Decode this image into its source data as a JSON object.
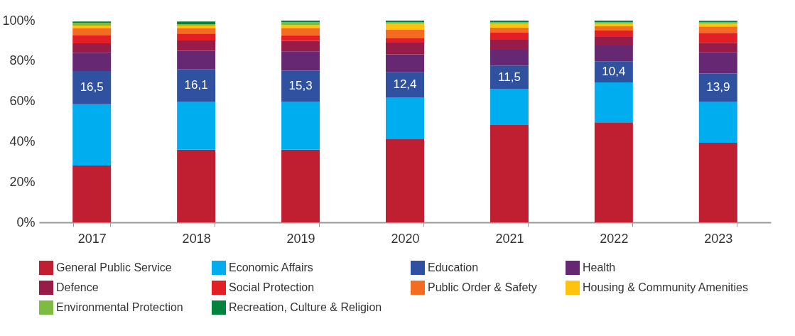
{
  "chart_data": {
    "type": "bar",
    "stacked": true,
    "categories": [
      "2017",
      "2018",
      "2019",
      "2020",
      "2021",
      "2022",
      "2023"
    ],
    "ylim": [
      0,
      100
    ],
    "yticks": [
      {
        "value": 0,
        "label": "0%"
      },
      {
        "value": 20,
        "label": "20%"
      },
      {
        "value": 40,
        "label": "40%"
      },
      {
        "value": 60,
        "label": "60%"
      },
      {
        "value": 80,
        "label": "80%"
      },
      {
        "value": 100,
        "label": "100%"
      }
    ],
    "grid": false,
    "legend": "bottom",
    "series": [
      {
        "name": "General Public Service",
        "color": "#c01f32",
        "values": [
          28.2,
          36.0,
          36.0,
          41.5,
          48.2,
          49.6,
          39.4
        ]
      },
      {
        "name": "Economic Affairs",
        "color": "#00aeef",
        "values": [
          30.3,
          23.9,
          23.9,
          20.5,
          18.0,
          19.8,
          20.5
        ]
      },
      {
        "name": "Education",
        "color": "#3050a0",
        "values": [
          16.5,
          16.1,
          15.3,
          12.4,
          11.5,
          10.4,
          13.9
        ],
        "value_labels": [
          "16,5",
          "16,1",
          "15,3",
          "12,4",
          "11,5",
          "10,4",
          "13,9"
        ]
      },
      {
        "name": "Health",
        "color": "#662873",
        "values": [
          9.1,
          9.0,
          9.6,
          8.9,
          7.9,
          7.9,
          10.6
        ]
      },
      {
        "name": "Defence",
        "color": "#981b48",
        "values": [
          4.6,
          5.1,
          5.2,
          5.8,
          4.9,
          4.2,
          4.6
        ]
      },
      {
        "name": "Social Protection",
        "color": "#e31f26",
        "values": [
          4.2,
          3.5,
          2.8,
          2.1,
          3.5,
          3.2,
          4.9
        ]
      },
      {
        "name": "Public Order & Safety",
        "color": "#f36c21",
        "values": [
          3.2,
          2.5,
          3.3,
          4.2,
          2.5,
          2.1,
          3.2
        ]
      },
      {
        "name": "Housing & Community Amenities",
        "color": "#fec20f",
        "values": [
          1.4,
          1.4,
          1.8,
          3.2,
          2.1,
          1.4,
          1.4
        ]
      },
      {
        "name": "Environmental Protection",
        "color": "#7dbb42",
        "values": [
          1.4,
          0.7,
          1.4,
          0.7,
          0.7,
          0.7,
          0.7
        ]
      },
      {
        "name": "Recreation, Culture & Religion",
        "color": "#00843d",
        "values": [
          0.7,
          1.4,
          0.7,
          0.7,
          0.7,
          0.7,
          0.7
        ]
      }
    ]
  }
}
